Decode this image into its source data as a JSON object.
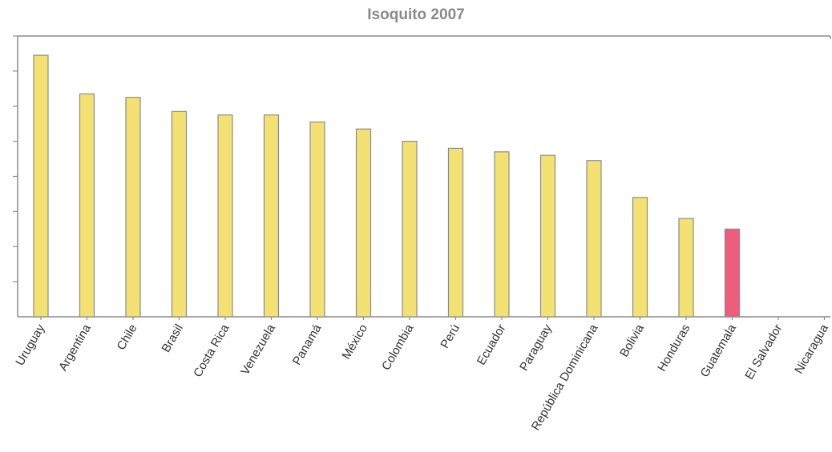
{
  "chart_data": {
    "type": "bar",
    "title": "Isoquito 2007",
    "xlabel": "",
    "ylabel": "",
    "categories": [
      "Uruguay",
      "Argentina",
      "Chile",
      "Brasil",
      "Costa Rica",
      "Venezuela",
      "Panamá",
      "México",
      "Colombia",
      "Perú",
      "Ecuador",
      "Paraguay",
      "República Dominicana",
      "Bolivia",
      "Honduras",
      "Guatemala",
      "El Salvador",
      "Nicaragua"
    ],
    "values": [
      0.745,
      0.635,
      0.625,
      0.585,
      0.575,
      0.575,
      0.555,
      0.535,
      0.5,
      0.48,
      0.47,
      0.46,
      0.445,
      0.34,
      0.28,
      0.25,
      0.0,
      0.0
    ],
    "ylim": [
      0,
      0.8
    ],
    "yticks": 8,
    "grid": false,
    "colors": {
      "bar": "#f3e172",
      "highlight": "#ef5d7c",
      "bar_stroke": "#8c8c8c",
      "axis": "#8c8c8c",
      "label": "#333333"
    },
    "highlight_category": "Guatemala"
  }
}
